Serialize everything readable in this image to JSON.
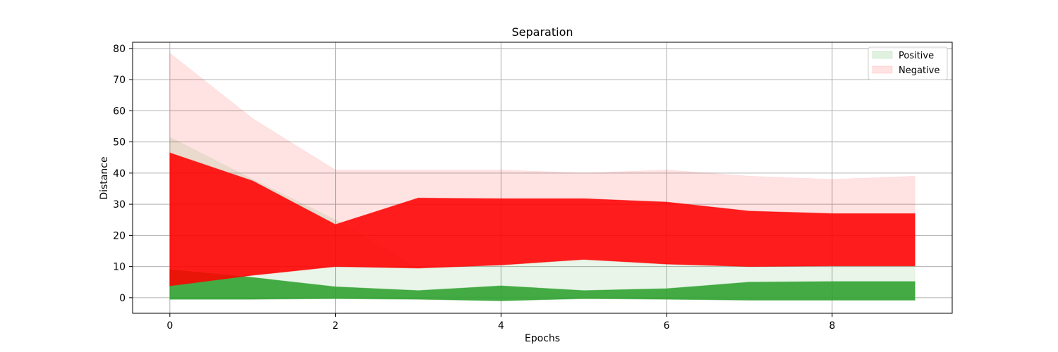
{
  "chart_data": {
    "type": "area",
    "title": "Separation",
    "xlabel": "Epochs",
    "ylabel": "Distance",
    "x": [
      0,
      1,
      2,
      3,
      4,
      5,
      6,
      7,
      8,
      9
    ],
    "xticks": [
      "0",
      "2",
      "4",
      "6",
      "8"
    ],
    "yticks": [
      "0",
      "10",
      "20",
      "30",
      "40",
      "50",
      "60",
      "70",
      "80"
    ],
    "xlim": [
      -0.45,
      9.45
    ],
    "ylim": [
      -5,
      82
    ],
    "grid": true,
    "legend_position": "top-right",
    "series": [
      {
        "name": "Positive",
        "color": "#2ca02c",
        "bands": [
          {
            "role": "outer",
            "low": [
              -0.5,
              -0.5,
              -0.3,
              -0.5,
              -1.0,
              -0.3,
              -0.5,
              -0.8,
              -0.8,
              -0.8
            ],
            "high": [
              51.5,
              38.0,
              25.0,
              9.5,
              10.5,
              12.3,
              10.8,
              10.0,
              10.2,
              10.2
            ]
          },
          {
            "role": "inner",
            "low": [
              -0.5,
              -0.5,
              -0.3,
              -0.5,
              -1.0,
              -0.3,
              -0.5,
              -0.8,
              -0.8,
              -0.8
            ],
            "high": [
              9.0,
              6.5,
              3.5,
              2.3,
              3.8,
              2.3,
              2.9,
              5.0,
              5.2,
              5.2
            ]
          }
        ]
      },
      {
        "name": "Negative",
        "color": "#ff0000",
        "bands": [
          {
            "role": "outer",
            "low": [
              3.8,
              7.2,
              10.0,
              9.5,
              10.5,
              12.3,
              10.8,
              10.0,
              10.2,
              10.2
            ],
            "high": [
              78.5,
              57.5,
              41.0,
              41.0,
              41.0,
              40.0,
              41.0,
              39.0,
              38.0,
              39.0
            ]
          },
          {
            "role": "inner",
            "low": [
              3.8,
              7.2,
              10.0,
              9.5,
              10.5,
              12.3,
              10.8,
              10.0,
              10.2,
              10.2
            ],
            "high": [
              46.5,
              37.5,
              23.5,
              32.0,
              31.8,
              31.8,
              30.7,
              27.8,
              27.0,
              27.0
            ]
          }
        ]
      }
    ]
  }
}
